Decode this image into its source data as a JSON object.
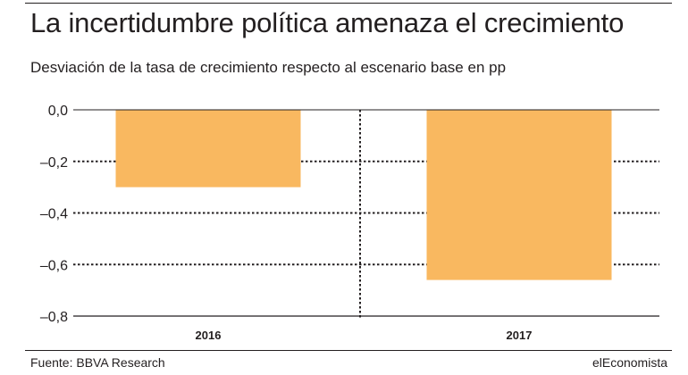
{
  "header": {
    "title": "La incertidumbre política amenaza el crecimiento",
    "subtitle": "Desviación de la tasa de crecimiento respecto al escenario base en pp"
  },
  "footer": {
    "source": "Fuente: BBVA Research",
    "brand": "elEconomista"
  },
  "colors": {
    "bar": "#f9b860",
    "text": "#231f20",
    "grid": "#231f20"
  },
  "chart_data": {
    "type": "bar",
    "categories": [
      "2016",
      "2017"
    ],
    "values": [
      -0.3,
      -0.66
    ],
    "title": "La incertidumbre política amenaza el crecimiento",
    "subtitle": "Desviación de la tasa de crecimiento respecto al escenario base en pp",
    "xlabel": "",
    "ylabel": "",
    "ylim": [
      -0.8,
      0.0
    ],
    "yticks": [
      0.0,
      -0.2,
      -0.4,
      -0.6,
      -0.8
    ],
    "ytick_labels": [
      "0,0",
      "–0,2",
      "–0,4",
      "–0,6",
      "–0,8"
    ],
    "grid": "dotted horizontal",
    "legend": "none"
  }
}
